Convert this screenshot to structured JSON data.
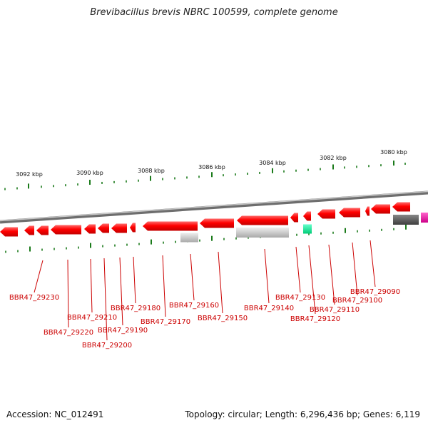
{
  "title": "Brevibacillus brevis NBRC 100599, complete genome",
  "accession_text": "Accession: NC_012491",
  "summary_text": "Topology: circular; Length: 6,296,436 bp; Genes: 6,119",
  "colors": {
    "forward_gene": "#ff0000",
    "pseudo_gene": "#c8c8c8",
    "rna_gene": "#00ff99",
    "other_gene": "#555555",
    "special_gene": "#ff00aa",
    "tick": "#1a7a1a",
    "label": "#cc0000",
    "backbone": "#8a8a8a"
  },
  "scale_labels": [
    "3092 kbp",
    "3090 kbp",
    "3088 kbp",
    "3086 kbp",
    "3084 kbp",
    "3082 kbp",
    "3080 kbp"
  ],
  "gene_labels": [
    "BBR47_29230",
    "BBR47_29220",
    "BBR47_29210",
    "BBR47_29200",
    "BBR47_29190",
    "BBR47_29180",
    "BBR47_29170",
    "BBR47_29160",
    "BBR47_29150",
    "BBR47_29140",
    "BBR47_29130",
    "BBR47_29120",
    "BBR47_29110",
    "BBR47_29100",
    "BBR47_29090"
  ]
}
